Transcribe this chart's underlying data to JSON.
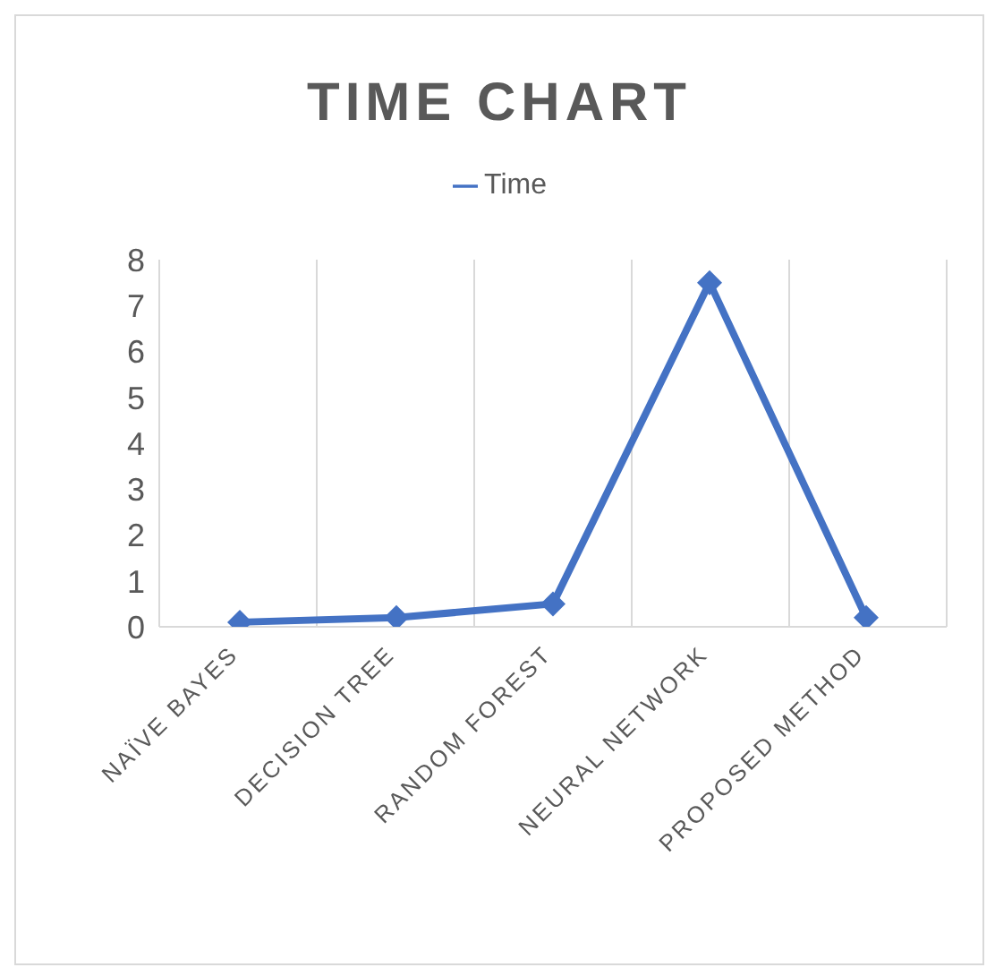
{
  "chart_data": {
    "type": "line",
    "title": "TIME CHART",
    "categories": [
      "NAÏVE BAYES",
      "DECISION TREE",
      "RANDOM FOREST",
      "NEURAL NETWORK",
      "PROPOSED METHOD"
    ],
    "series": [
      {
        "name": "Time",
        "color": "#4472c4",
        "values": [
          0.1,
          0.2,
          0.5,
          7.5,
          0.2
        ]
      }
    ],
    "ylim": [
      0,
      8
    ],
    "yticks": [
      0,
      1,
      2,
      3,
      4,
      5,
      6,
      7,
      8
    ],
    "grid": "x",
    "legend": "top",
    "marker": "diamond",
    "line_style": "solid"
  }
}
